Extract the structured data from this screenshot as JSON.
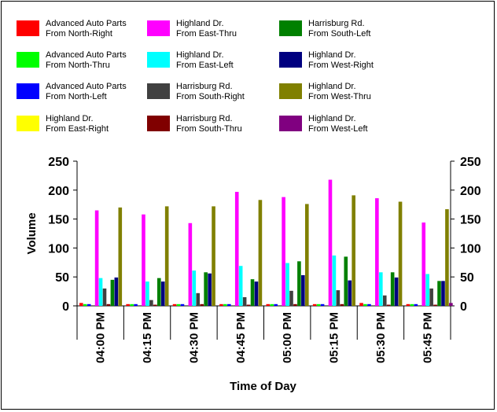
{
  "chart_data": {
    "type": "bar",
    "xlabel": "Time of Day",
    "ylabel": "Volume",
    "ylim": [
      0,
      250
    ],
    "yticks": [
      "0",
      "50",
      "100",
      "150",
      "200",
      "250"
    ],
    "grid": false,
    "legend_position": "top",
    "categories": [
      "04:00 PM",
      "04:15 PM",
      "04:30 PM",
      "04:45 PM",
      "05:00 PM",
      "05:15 PM",
      "05:30 PM",
      "05:45 PM"
    ],
    "series": [
      {
        "name": "Advanced Auto Parts\nFrom North-Right",
        "color": "#ff0000",
        "values": [
          5,
          3,
          3,
          3,
          3,
          3,
          5,
          3
        ]
      },
      {
        "name": "Advanced Auto Parts\nFrom North-Thru",
        "color": "#00ff00",
        "values": [
          3,
          3,
          3,
          3,
          3,
          3,
          3,
          3
        ]
      },
      {
        "name": "Advanced Auto Parts\nFrom North-Left",
        "color": "#0000ff",
        "values": [
          3,
          3,
          3,
          3,
          3,
          3,
          3,
          3
        ]
      },
      {
        "name": "Highland Dr.\nFrom East-Right",
        "color": "#ffff00",
        "values": [
          0,
          0,
          0,
          0,
          0,
          0,
          0,
          0
        ]
      },
      {
        "name": "Highland Dr.\nFrom East-Thru",
        "color": "#ff00ff",
        "values": [
          165,
          158,
          143,
          197,
          188,
          218,
          186,
          144
        ]
      },
      {
        "name": "Highland Dr.\nFrom East-Left",
        "color": "#00ffff",
        "values": [
          48,
          42,
          61,
          69,
          74,
          87,
          58,
          55
        ]
      },
      {
        "name": "Harrisburg Rd.\nFrom South-Right",
        "color": "#404040",
        "values": [
          30,
          10,
          22,
          15,
          26,
          27,
          18,
          30
        ]
      },
      {
        "name": "Harrisburg Rd.\nFrom South-Thru",
        "color": "#800000",
        "values": [
          3,
          2,
          3,
          2,
          3,
          3,
          2,
          2
        ]
      },
      {
        "name": "Harrisburg Rd.\nFrom South-Left",
        "color": "#008000",
        "values": [
          45,
          48,
          58,
          46,
          77,
          85,
          58,
          43
        ]
      },
      {
        "name": "Highland Dr.\nFrom West-Right",
        "color": "#000080",
        "values": [
          49,
          42,
          56,
          42,
          53,
          44,
          49,
          43
        ]
      },
      {
        "name": "Highland Dr.\nFrom West-Thru",
        "color": "#808000",
        "values": [
          170,
          172,
          172,
          183,
          176,
          191,
          180,
          167
        ]
      },
      {
        "name": "Highland Dr.\nFrom West-Left",
        "color": "#800080",
        "values": [
          0,
          0,
          0,
          0,
          0,
          0,
          0,
          5
        ]
      }
    ]
  }
}
